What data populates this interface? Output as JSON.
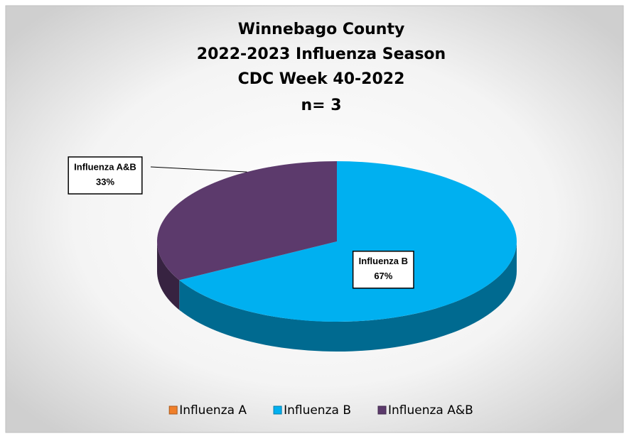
{
  "chart_data": {
    "type": "pie",
    "title": [
      "Winnebago County",
      "2022-2023 Influenza Season",
      "CDC Week 40-2022",
      "n= 3"
    ],
    "categories": [
      "Influenza A",
      "Influenza B",
      "Influenza A&B"
    ],
    "values": [
      0,
      67,
      33
    ],
    "value_labels": [
      null,
      "67%",
      "33%"
    ],
    "colors": [
      "#f07f2a",
      "#00b0f0",
      "#5c3a6c"
    ],
    "legend": "bottom"
  }
}
